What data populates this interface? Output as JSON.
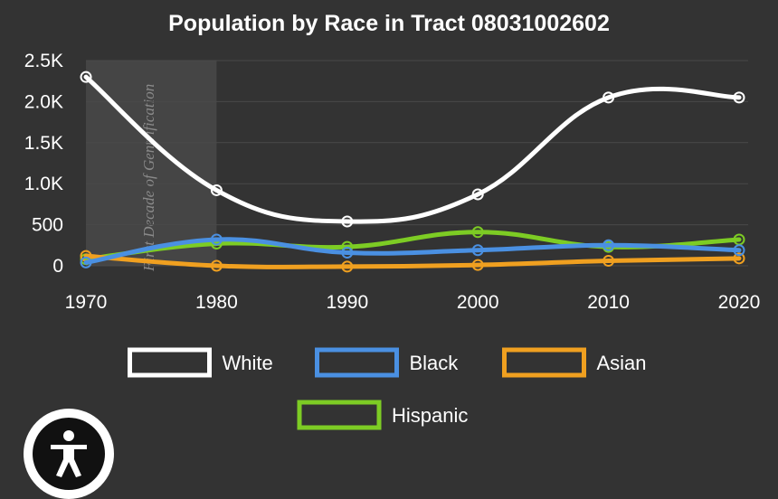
{
  "chart_data": {
    "type": "line",
    "title": "Population by Race in Tract 08031002602",
    "x": [
      1970,
      1980,
      1990,
      2000,
      2010,
      2020
    ],
    "x_tick_labels": [
      "1970",
      "1980",
      "1990",
      "2000",
      "2010",
      "2020"
    ],
    "ylim": [
      0,
      2500
    ],
    "y_ticks": [
      0,
      500,
      1000,
      1500,
      2000,
      2500
    ],
    "y_tick_labels": [
      "0",
      "500",
      "1.0K",
      "1.5K",
      "2.0K",
      "2.5K"
    ],
    "grid": true,
    "legend_position": "bottom",
    "series": [
      {
        "name": "White",
        "color": "#ffffff",
        "values": [
          2300,
          920,
          540,
          870,
          2050,
          2050
        ]
      },
      {
        "name": "Black",
        "color": "#4a90e2",
        "values": [
          40,
          320,
          160,
          190,
          250,
          190
        ]
      },
      {
        "name": "Asian",
        "color": "#f0a020",
        "values": [
          120,
          0,
          -10,
          10,
          60,
          90
        ]
      },
      {
        "name": "Hispanic",
        "color": "#7dcc24",
        "values": [
          80,
          270,
          230,
          410,
          230,
          320
        ]
      }
    ],
    "band": {
      "from": 1970,
      "to": 1980,
      "label": "First Decade of Gentrification"
    }
  },
  "accessibility": {
    "icon": "accessibility-person-icon"
  }
}
